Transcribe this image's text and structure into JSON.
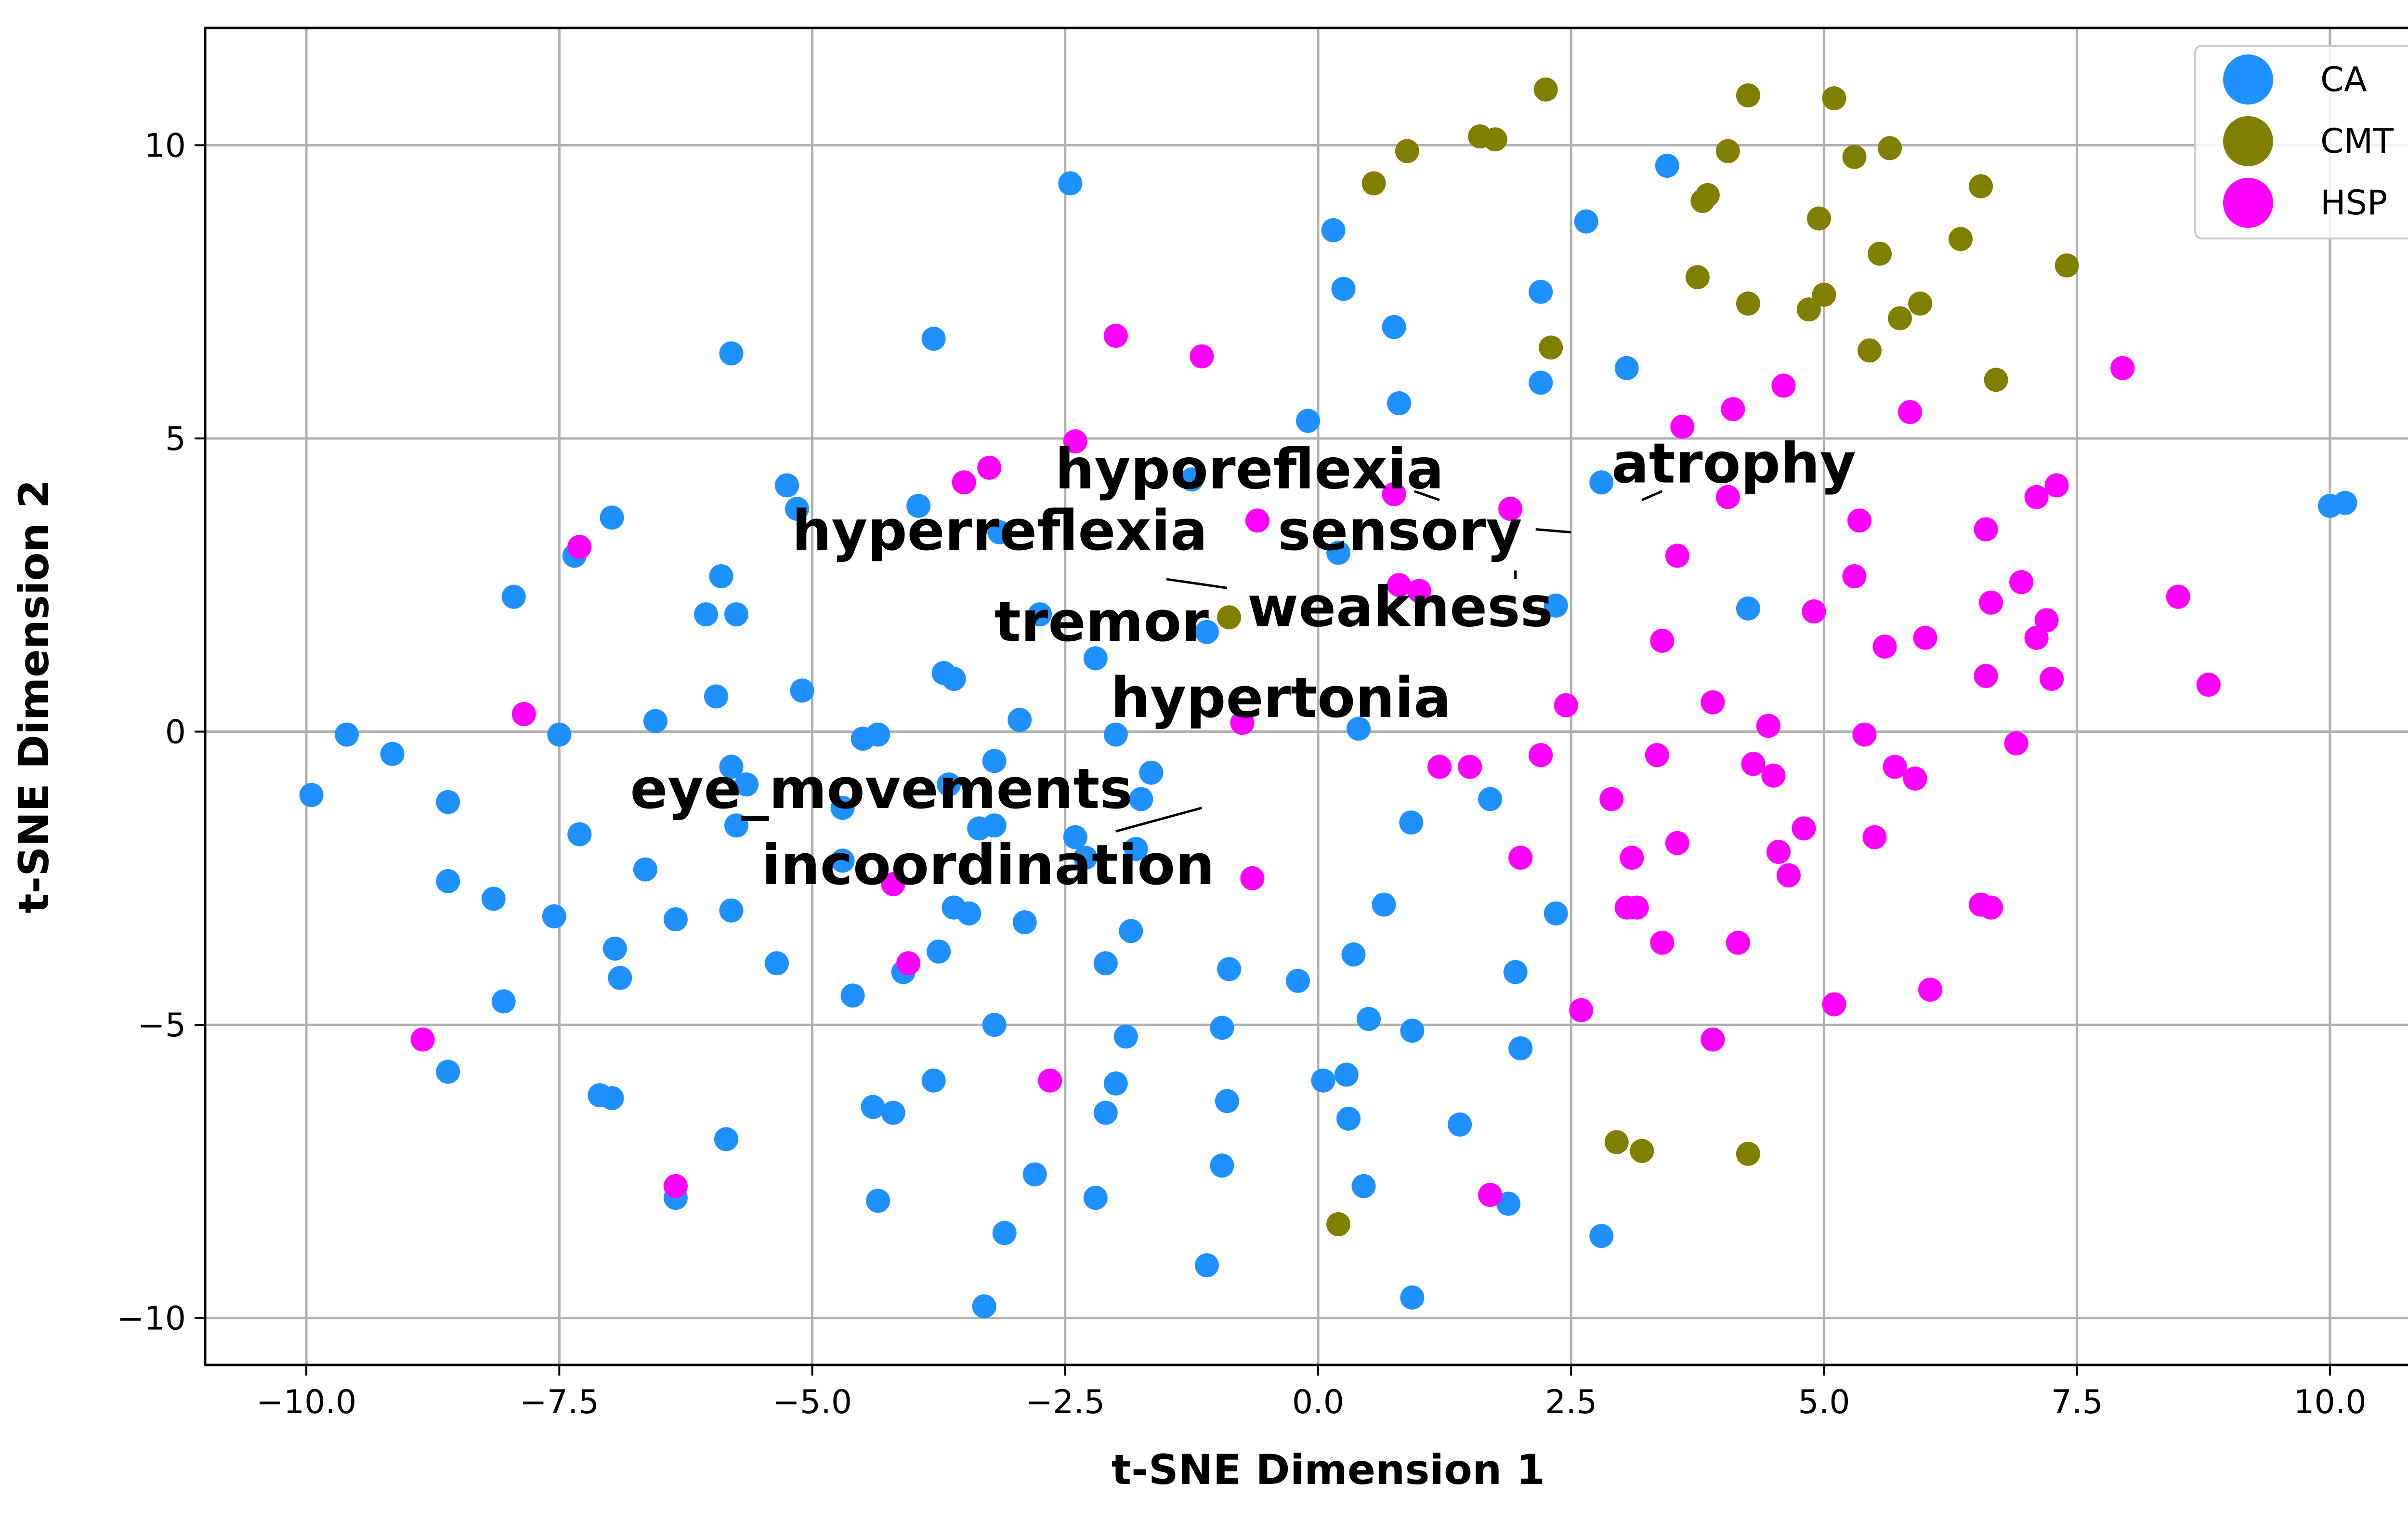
{
  "chart_data": {
    "type": "scatter",
    "title": "",
    "xlabel": "t-SNE Dimension 1",
    "ylabel": "t-SNE Dimension 2",
    "xlim": [
      -11.0,
      11.2
    ],
    "ylim": [
      -10.8,
      12.0
    ],
    "xticks": [
      -10,
      -7.5,
      -5,
      -2.5,
      0,
      2.5,
      5,
      7.5,
      10
    ],
    "xtick_labels": [
      "−10.0",
      "−7.5",
      "−5.0",
      "−2.5",
      "0.0",
      "2.5",
      "5.0",
      "7.5",
      "10.0"
    ],
    "yticks": [
      -10,
      -5,
      0,
      5,
      10
    ],
    "ytick_labels": [
      "−10",
      "−5",
      "0",
      "5",
      "10"
    ],
    "grid": true,
    "legend": "top-right",
    "series": [
      {
        "name": "CA",
        "color": "#1e90ff",
        "points": [
          [
            -9.95,
            -1.08
          ],
          [
            -9.6,
            -0.05
          ],
          [
            -9.15,
            -0.38
          ],
          [
            -8.6,
            -1.2
          ],
          [
            -8.6,
            -2.55
          ],
          [
            -8.6,
            -5.8
          ],
          [
            -8.15,
            -2.85
          ],
          [
            -8.05,
            -4.6
          ],
          [
            -7.95,
            2.3
          ],
          [
            -7.55,
            -3.15
          ],
          [
            -7.5,
            -0.05
          ],
          [
            -7.35,
            3.0
          ],
          [
            -7.3,
            -1.75
          ],
          [
            -7.1,
            -6.2
          ],
          [
            -6.98,
            3.65
          ],
          [
            -6.98,
            -6.25
          ],
          [
            -6.95,
            -3.7
          ],
          [
            -6.9,
            -4.2
          ],
          [
            -6.65,
            -2.35
          ],
          [
            -6.55,
            0.18
          ],
          [
            -6.35,
            -3.2
          ],
          [
            -6.35,
            -7.95
          ],
          [
            -6.05,
            2.0
          ],
          [
            -5.95,
            0.6
          ],
          [
            -5.9,
            2.65
          ],
          [
            -5.85,
            -6.95
          ],
          [
            -5.8,
            6.45
          ],
          [
            -5.8,
            -0.6
          ],
          [
            -5.8,
            -3.05
          ],
          [
            -5.75,
            2.0
          ],
          [
            -5.75,
            -1.6
          ],
          [
            -5.65,
            -0.9
          ],
          [
            -5.35,
            -3.95
          ],
          [
            -5.25,
            4.2
          ],
          [
            -5.15,
            3.8
          ],
          [
            -5.1,
            0.7
          ],
          [
            -4.7,
            -1.3
          ],
          [
            -4.7,
            -2.2
          ],
          [
            -4.6,
            -4.5
          ],
          [
            -4.5,
            -0.12
          ],
          [
            -4.4,
            -6.4
          ],
          [
            -4.35,
            -0.05
          ],
          [
            -4.35,
            -8.0
          ],
          [
            -4.2,
            -6.5
          ],
          [
            -4.1,
            -4.1
          ],
          [
            -3.95,
            3.85
          ],
          [
            -3.8,
            -5.95
          ],
          [
            -3.8,
            6.7
          ],
          [
            -3.75,
            -3.75
          ],
          [
            -3.7,
            1.0
          ],
          [
            -3.65,
            -0.9
          ],
          [
            -3.6,
            0.9
          ],
          [
            -3.6,
            -3.0
          ],
          [
            -3.45,
            -3.1
          ],
          [
            -3.35,
            -1.65
          ],
          [
            -3.3,
            -9.8
          ],
          [
            -3.2,
            -1.6
          ],
          [
            -3.2,
            -0.5
          ],
          [
            -3.2,
            -5.0
          ],
          [
            -3.15,
            3.4
          ],
          [
            -3.1,
            -8.55
          ],
          [
            -2.95,
            0.2
          ],
          [
            -2.9,
            -3.25
          ],
          [
            -2.8,
            -7.55
          ],
          [
            -2.75,
            2.0
          ],
          [
            -2.45,
            9.35
          ],
          [
            -2.4,
            -1.8
          ],
          [
            -2.3,
            -2.15
          ],
          [
            -2.2,
            1.25
          ],
          [
            -2.2,
            -7.95
          ],
          [
            -2.1,
            -3.95
          ],
          [
            -2.1,
            -6.5
          ],
          [
            -2.0,
            -0.05
          ],
          [
            -2.0,
            -6.0
          ],
          [
            -1.9,
            -5.2
          ],
          [
            -1.85,
            -3.4
          ],
          [
            -1.8,
            -2.0
          ],
          [
            -1.75,
            -1.15
          ],
          [
            -1.65,
            -0.7
          ],
          [
            -1.25,
            4.3
          ],
          [
            -1.1,
            1.7
          ],
          [
            -1.1,
            -9.1
          ],
          [
            -0.95,
            -5.05
          ],
          [
            -0.95,
            -7.4
          ],
          [
            -0.9,
            -6.3
          ],
          [
            -0.88,
            -4.05
          ],
          [
            -0.2,
            -4.25
          ],
          [
            -0.1,
            5.3
          ],
          [
            0.05,
            -5.95
          ],
          [
            0.15,
            8.55
          ],
          [
            0.2,
            3.05
          ],
          [
            0.25,
            7.55
          ],
          [
            0.28,
            -5.85
          ],
          [
            0.3,
            -6.6
          ],
          [
            0.35,
            -3.8
          ],
          [
            0.4,
            0.05
          ],
          [
            0.45,
            -7.75
          ],
          [
            0.5,
            -4.9
          ],
          [
            0.65,
            -2.95
          ],
          [
            0.75,
            6.9
          ],
          [
            0.8,
            5.6
          ],
          [
            0.92,
            -1.55
          ],
          [
            0.93,
            -5.1
          ],
          [
            0.93,
            -9.65
          ],
          [
            1.4,
            -6.7
          ],
          [
            1.7,
            -1.15
          ],
          [
            1.88,
            -8.05
          ],
          [
            1.95,
            -4.1
          ],
          [
            2.0,
            -5.4
          ],
          [
            2.2,
            5.95
          ],
          [
            2.2,
            7.5
          ],
          [
            2.35,
            -3.1
          ],
          [
            2.35,
            2.15
          ],
          [
            2.65,
            8.7
          ],
          [
            2.8,
            -8.6
          ],
          [
            2.8,
            4.25
          ],
          [
            3.05,
            6.2
          ],
          [
            3.45,
            9.65
          ],
          [
            4.25,
            2.1
          ],
          [
            10.0,
            3.85
          ],
          [
            10.15,
            3.9
          ]
        ]
      },
      {
        "name": "CMT",
        "color": "#808000",
        "points": [
          [
            -0.88,
            1.95
          ],
          [
            0.2,
            -8.4
          ],
          [
            0.55,
            9.35
          ],
          [
            0.88,
            9.9
          ],
          [
            1.6,
            10.15
          ],
          [
            1.75,
            10.1
          ],
          [
            2.25,
            10.95
          ],
          [
            2.3,
            6.55
          ],
          [
            2.95,
            -7.0
          ],
          [
            3.2,
            -7.15
          ],
          [
            3.75,
            7.75
          ],
          [
            3.8,
            9.05
          ],
          [
            3.85,
            9.15
          ],
          [
            4.05,
            9.9
          ],
          [
            4.25,
            7.3
          ],
          [
            4.25,
            10.85
          ],
          [
            4.25,
            -7.2
          ],
          [
            4.85,
            7.2
          ],
          [
            4.95,
            8.75
          ],
          [
            5.0,
            7.45
          ],
          [
            5.1,
            10.8
          ],
          [
            5.3,
            9.8
          ],
          [
            5.45,
            6.5
          ],
          [
            5.55,
            8.15
          ],
          [
            5.65,
            9.95
          ],
          [
            5.75,
            7.05
          ],
          [
            5.95,
            7.3
          ],
          [
            6.35,
            8.4
          ],
          [
            6.55,
            9.3
          ],
          [
            6.7,
            6.0
          ],
          [
            7.4,
            7.95
          ]
        ]
      },
      {
        "name": "HSP",
        "color": "#ff00ff",
        "points": [
          [
            -8.85,
            -5.25
          ],
          [
            -7.85,
            0.3
          ],
          [
            -7.3,
            3.15
          ],
          [
            -6.35,
            -7.75
          ],
          [
            -4.2,
            -2.6
          ],
          [
            -4.05,
            -3.95
          ],
          [
            -3.5,
            4.25
          ],
          [
            -3.25,
            4.5
          ],
          [
            -2.65,
            -5.95
          ],
          [
            -2.4,
            4.95
          ],
          [
            -2.0,
            6.75
          ],
          [
            -1.15,
            6.4
          ],
          [
            -0.75,
            0.15
          ],
          [
            -0.65,
            -2.5
          ],
          [
            -0.6,
            3.6
          ],
          [
            0.75,
            4.05
          ],
          [
            0.8,
            2.5
          ],
          [
            1.0,
            2.4
          ],
          [
            1.2,
            -0.6
          ],
          [
            1.5,
            -0.6
          ],
          [
            1.7,
            -7.9
          ],
          [
            1.9,
            3.8
          ],
          [
            2.0,
            -2.15
          ],
          [
            2.2,
            -0.4
          ],
          [
            2.45,
            0.45
          ],
          [
            2.6,
            -4.75
          ],
          [
            2.9,
            -1.15
          ],
          [
            3.05,
            -3.0
          ],
          [
            3.1,
            -2.15
          ],
          [
            3.15,
            -3.0
          ],
          [
            3.35,
            -0.4
          ],
          [
            3.4,
            -3.6
          ],
          [
            3.4,
            1.55
          ],
          [
            3.55,
            -1.9
          ],
          [
            3.55,
            3.0
          ],
          [
            3.6,
            5.2
          ],
          [
            3.9,
            0.5
          ],
          [
            3.9,
            -5.25
          ],
          [
            4.05,
            4.0
          ],
          [
            4.1,
            5.5
          ],
          [
            4.15,
            -3.6
          ],
          [
            4.3,
            -0.55
          ],
          [
            4.45,
            0.1
          ],
          [
            4.5,
            -0.75
          ],
          [
            4.55,
            -2.05
          ],
          [
            4.6,
            5.9
          ],
          [
            4.65,
            -2.45
          ],
          [
            4.8,
            -1.65
          ],
          [
            4.9,
            2.05
          ],
          [
            5.1,
            -4.65
          ],
          [
            5.3,
            2.65
          ],
          [
            5.35,
            3.6
          ],
          [
            5.4,
            -0.05
          ],
          [
            5.5,
            -1.8
          ],
          [
            5.6,
            1.45
          ],
          [
            5.7,
            -0.6
          ],
          [
            5.85,
            5.45
          ],
          [
            5.9,
            -0.8
          ],
          [
            6.0,
            1.6
          ],
          [
            6.05,
            -4.4
          ],
          [
            6.55,
            -2.95
          ],
          [
            6.6,
            3.45
          ],
          [
            6.6,
            0.95
          ],
          [
            6.65,
            2.2
          ],
          [
            6.65,
            -3.0
          ],
          [
            6.9,
            -0.2
          ],
          [
            6.95,
            2.55
          ],
          [
            7.1,
            1.6
          ],
          [
            7.1,
            4.0
          ],
          [
            7.2,
            1.9
          ],
          [
            7.25,
            0.9
          ],
          [
            7.3,
            4.2
          ],
          [
            7.95,
            6.2
          ],
          [
            8.5,
            2.3
          ],
          [
            8.8,
            0.8
          ]
        ]
      }
    ],
    "annotations": [
      {
        "text": "hyporeflexia",
        "x": -2.6,
        "y": 4.15,
        "arrow_to": [
          1.2,
          3.95
        ]
      },
      {
        "text": "atrophy",
        "x": 2.9,
        "y": 4.25,
        "arrow_to": [
          3.2,
          3.95
        ]
      },
      {
        "text": "sensory",
        "x": -0.4,
        "y": 3.1,
        "arrow_to": [
          2.5,
          3.4
        ]
      },
      {
        "text": "hyperreflexia",
        "x": -5.2,
        "y": 3.1,
        "arrow_to": [
          -0.9,
          2.45
        ]
      },
      {
        "text": "weakness",
        "x": -0.7,
        "y": 1.8,
        "arrow_to": [
          1.95,
          2.65
        ]
      },
      {
        "text": "tremor",
        "x": -3.2,
        "y": 1.55,
        "arrow_to": [
          -2.7,
          2.1
        ]
      },
      {
        "text": "hypertonia",
        "x": -2.05,
        "y": 0.25,
        "arrow_to": [
          -2.0,
          0.2
        ]
      },
      {
        "text": "eye_movements",
        "x": -6.8,
        "y": -1.3,
        "arrow_to": [
          -1.8,
          -1.7
        ]
      },
      {
        "text": "incoordination",
        "x": -5.5,
        "y": -2.6,
        "arrow_to": [
          -1.2,
          -1.3
        ]
      }
    ]
  }
}
